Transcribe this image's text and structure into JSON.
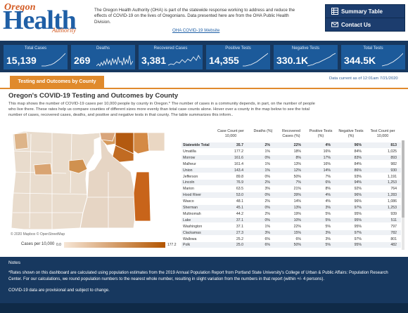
{
  "header": {
    "logo": {
      "line1": "Oregon",
      "line2": "Health",
      "line3": "Authority"
    },
    "intro": "The Oregon Health Authority (OHA) is part of the statewide response working to address and reduce the effects of COVID-19 on the lives of Oregonians. Data presented here are from the OHA Public Health Division.",
    "link": "OHA COVID-19 Website",
    "nav": [
      {
        "label": "Summary Table",
        "icon": "table-icon"
      },
      {
        "label": "Contact Us",
        "icon": "mail-icon"
      }
    ]
  },
  "kpis": [
    {
      "label": "Total Cases",
      "value": "15,139"
    },
    {
      "label": "Deaths",
      "value": "269"
    },
    {
      "label": "Recovered Cases",
      "value": "3,381"
    },
    {
      "label": "Positive Tests",
      "value": "14,355"
    },
    {
      "label": "Negative Tests",
      "value": "330.1K"
    },
    {
      "label": "Total Tests",
      "value": "344.5K"
    }
  ],
  "as_of": "Data current as of 12:01am 7/21/2020",
  "tab": {
    "label": "Testing and Outcomes by County"
  },
  "section": {
    "title": "Oregon's COVID-19 Testing and Outcomes by County",
    "description": "This map shows the number of COVID-19 cases per 10,000 people by county in Oregon.* The number of cases in a community depends, in part, on the number of people who live there. These rates help us compare counties of different sizes more evenly than total case counts alone. Hover over a county in the map below to see the total number of cases, recovered cases, deaths, and positive and negative tests in that county. The table summarizes this inform.."
  },
  "map": {
    "credit": "© 2020 Mapbox © OpenStreetMap",
    "legend_label": "Cases per 10,000",
    "legend_min": "0.0",
    "legend_max": "177.2",
    "color_low": "#f6e6d6",
    "color_high": "#b35500"
  },
  "table": {
    "columns": [
      "Case Count per 10,000",
      "Deaths (%)",
      "Recovered Cases (%)",
      "Positive Tests (%)",
      "Negative Tests (%)",
      "Test Count per 10,000"
    ],
    "rows": [
      [
        "Statewide Total",
        "35.7",
        "2%",
        "22%",
        "4%",
        "96%",
        "813"
      ],
      [
        "Umatilla",
        "177.2",
        "1%",
        "18%",
        "16%",
        "84%",
        "1,025"
      ],
      [
        "Morrow",
        "161.6",
        "0%",
        "8%",
        "17%",
        "83%",
        "893"
      ],
      [
        "Malheur",
        "161.4",
        "1%",
        "13%",
        "16%",
        "84%",
        "982"
      ],
      [
        "Union",
        "143.4",
        "1%",
        "12%",
        "14%",
        "86%",
        "930"
      ],
      [
        "Jefferson",
        "89.8",
        "0%",
        "50%",
        "7%",
        "93%",
        "1,191"
      ],
      [
        "Lincoln",
        "76.9",
        "2%",
        "7%",
        "6%",
        "94%",
        "1,253"
      ],
      [
        "Marion",
        "63.5",
        "3%",
        "21%",
        "8%",
        "92%",
        "764"
      ],
      [
        "Hood River",
        "53.0",
        "0%",
        "39%",
        "4%",
        "96%",
        "1,283"
      ],
      [
        "Wasco",
        "48.1",
        "2%",
        "14%",
        "4%",
        "96%",
        "1,086"
      ],
      [
        "Sherman",
        "45.1",
        "0%",
        "13%",
        "3%",
        "97%",
        "1,253"
      ],
      [
        "Multnomah",
        "44.2",
        "2%",
        "19%",
        "5%",
        "95%",
        "939"
      ],
      [
        "Lake",
        "37.1",
        "0%",
        "10%",
        "5%",
        "95%",
        "511"
      ],
      [
        "Washington",
        "37.1",
        "1%",
        "22%",
        "5%",
        "95%",
        "797"
      ],
      [
        "Clackamas",
        "27.3",
        "3%",
        "15%",
        "3%",
        "97%",
        "782"
      ],
      [
        "Wallowa",
        "25.2",
        "6%",
        "6%",
        "3%",
        "97%",
        "801"
      ],
      [
        "Polk",
        "25.0",
        "6%",
        "50%",
        "5%",
        "95%",
        "482"
      ]
    ]
  },
  "notes": {
    "heading": "Notes",
    "p1": "*Rates shown on this dashboard are calculated using population estimates from the 2019 Annual Population Report from Portland State University's College of Urban & Public Affairs: Population Research Center. For our calculations, we round population numbers to the nearest whole number, resulting in slight variation from the numbers in that report (within +/- 4 persons).",
    "p2": "COVID-19 data are provisional and subject to change."
  }
}
